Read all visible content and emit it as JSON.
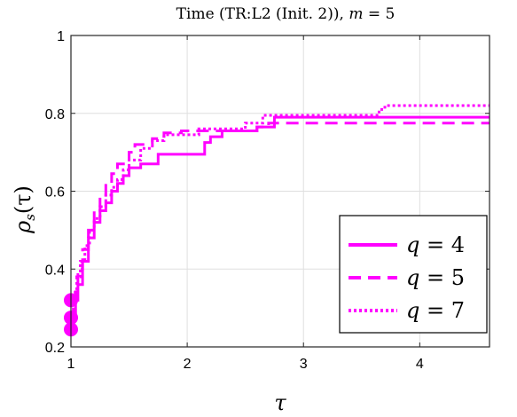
{
  "chart_data": {
    "type": "line",
    "title": "Time (TR:L2 (Init. 2)), m = 5",
    "title_prefix": "Time (TR:L2 (Init. 2)), ",
    "title_math_var": "m",
    "title_math_rest": " = 5",
    "xlabel": "τ",
    "ylabel_main": "ρ",
    "ylabel_sub": "s",
    "ylabel_rest": "(τ)",
    "xlim": [
      1,
      4.6
    ],
    "ylim": [
      0.2,
      1.0
    ],
    "x_ticks": [
      1,
      2,
      3,
      4
    ],
    "x_tick_labels": [
      "1",
      "2",
      "3",
      "4"
    ],
    "y_ticks": [
      0.2,
      0.4,
      0.6,
      0.8,
      1.0
    ],
    "y_tick_labels": [
      "0.2",
      "0.4",
      "0.6",
      "0.8",
      "1"
    ],
    "grid": true,
    "legend_position": "bottom-right",
    "color": "#ff00ff",
    "series": [
      {
        "name": "q = 4",
        "legend_var": "q",
        "legend_rest": " = 4",
        "style": "solid",
        "marker_y": 0.245,
        "steps": [
          [
            1.0,
            0.245
          ],
          [
            1.02,
            0.28
          ],
          [
            1.04,
            0.32
          ],
          [
            1.06,
            0.36
          ],
          [
            1.1,
            0.42
          ],
          [
            1.15,
            0.48
          ],
          [
            1.2,
            0.52
          ],
          [
            1.25,
            0.55
          ],
          [
            1.3,
            0.57
          ],
          [
            1.35,
            0.6
          ],
          [
            1.4,
            0.62
          ],
          [
            1.45,
            0.64
          ],
          [
            1.5,
            0.66
          ],
          [
            1.6,
            0.67
          ],
          [
            1.75,
            0.695
          ],
          [
            2.15,
            0.725
          ],
          [
            2.2,
            0.74
          ],
          [
            2.3,
            0.755
          ],
          [
            2.6,
            0.765
          ],
          [
            2.75,
            0.79
          ],
          [
            4.6,
            0.79
          ]
        ]
      },
      {
        "name": "q = 5",
        "legend_var": "q",
        "legend_rest": " = 5",
        "style": "dashed",
        "marker_y": 0.275,
        "steps": [
          [
            1.0,
            0.275
          ],
          [
            1.02,
            0.31
          ],
          [
            1.04,
            0.35
          ],
          [
            1.06,
            0.4
          ],
          [
            1.1,
            0.45
          ],
          [
            1.15,
            0.5
          ],
          [
            1.2,
            0.55
          ],
          [
            1.25,
            0.59
          ],
          [
            1.3,
            0.62
          ],
          [
            1.35,
            0.645
          ],
          [
            1.4,
            0.67
          ],
          [
            1.5,
            0.7
          ],
          [
            1.55,
            0.72
          ],
          [
            1.7,
            0.735
          ],
          [
            1.8,
            0.75
          ],
          [
            1.95,
            0.755
          ],
          [
            2.6,
            0.765
          ],
          [
            2.7,
            0.775
          ],
          [
            4.6,
            0.775
          ]
        ]
      },
      {
        "name": "q = 7",
        "legend_var": "q",
        "legend_rest": " = 7",
        "style": "dotted",
        "marker_y": 0.32,
        "steps": [
          [
            1.0,
            0.32
          ],
          [
            1.02,
            0.34
          ],
          [
            1.05,
            0.38
          ],
          [
            1.08,
            0.42
          ],
          [
            1.12,
            0.46
          ],
          [
            1.16,
            0.5
          ],
          [
            1.2,
            0.53
          ],
          [
            1.25,
            0.56
          ],
          [
            1.3,
            0.59
          ],
          [
            1.35,
            0.61
          ],
          [
            1.4,
            0.63
          ],
          [
            1.45,
            0.655
          ],
          [
            1.5,
            0.68
          ],
          [
            1.6,
            0.71
          ],
          [
            1.7,
            0.73
          ],
          [
            1.8,
            0.745
          ],
          [
            2.1,
            0.76
          ],
          [
            2.5,
            0.775
          ],
          [
            2.65,
            0.795
          ],
          [
            3.65,
            0.81
          ],
          [
            3.7,
            0.82
          ],
          [
            4.6,
            0.82
          ]
        ]
      }
    ]
  }
}
